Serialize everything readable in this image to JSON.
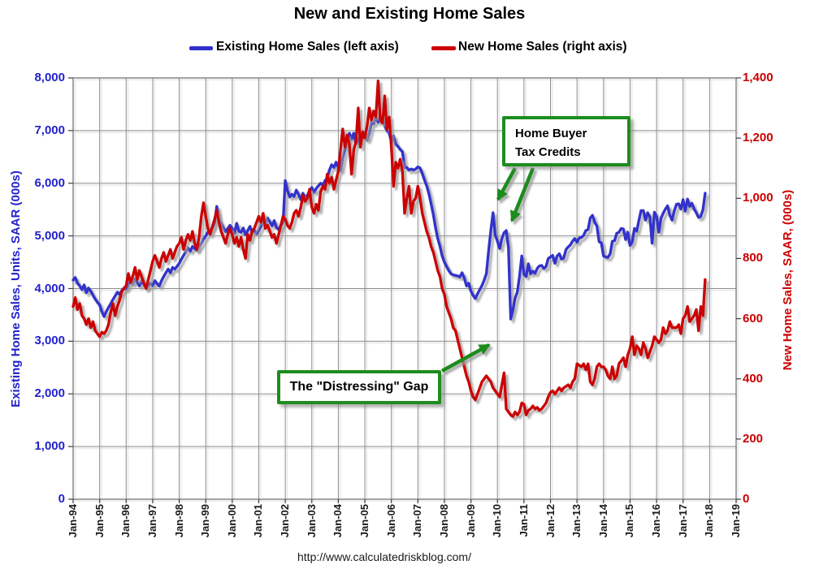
{
  "header": {
    "title": "New and Existing Home Sales"
  },
  "legend": {
    "items": [
      {
        "label": "Existing Home Sales (left axis)",
        "color": "#3030CC"
      },
      {
        "label": "New Home Sales (right axis)",
        "color": "#CC0202"
      }
    ]
  },
  "axes": {
    "left": {
      "title": "Existing Home Sales, Units, SAAR (000s)",
      "color": "#2222CC",
      "tick_labels": [
        "8,000",
        "7,000",
        "6,000",
        "5,000",
        "4,000",
        "3,000",
        "2,000",
        "1,000",
        "0"
      ]
    },
    "right": {
      "title": "New Home Sales, SAAR, (000s)",
      "color": "#CC0000",
      "tick_labels": [
        "1,400",
        "1,200",
        "1,000",
        "800",
        "600",
        "400",
        "200",
        "0"
      ]
    },
    "x": {
      "tick_labels": [
        "Jan-94",
        "Jan-95",
        "Jan-96",
        "Jan-97",
        "Jan-98",
        "Jan-99",
        "Jan-00",
        "Jan-01",
        "Jan-02",
        "Jan-03",
        "Jan-04",
        "Jan-05",
        "Jan-06",
        "Jan-07",
        "Jan-08",
        "Jan-09",
        "Jan-10",
        "Jan-11",
        "Jan-12",
        "Jan-13",
        "Jan-14",
        "Jan-15",
        "Jan-16",
        "Jan-17",
        "Jan-18",
        "Jan-19"
      ]
    }
  },
  "annotations": {
    "color": "#1E8C1E",
    "tax_credits": {
      "line1": "Home Buyer",
      "line2": "Tax Credits"
    },
    "gap": {
      "text": "The \"Distressing\" Gap"
    }
  },
  "footer": {
    "url": "http://www.calculatedriskblog.com/"
  },
  "chart_data": {
    "type": "line",
    "title": "New and Existing Home Sales",
    "x_start": "1994-01",
    "x_frequency": "monthly",
    "x_end": "2017-11",
    "x_axis_range": [
      "Jan-94",
      "Jan-19"
    ],
    "left_ylabel": "Existing Home Sales, Units, SAAR (000s)",
    "right_ylabel": "New Home Sales, SAAR, (000s)",
    "left_ylim": [
      0,
      8000
    ],
    "right_ylim": [
      0,
      1400
    ],
    "grid": true,
    "legend_position": "top",
    "series": [
      {
        "name": "Existing Home Sales (left axis)",
        "axis": "left",
        "color": "#3030CC",
        "values": [
          4160,
          4210,
          4100,
          4050,
          3980,
          4070,
          3920,
          4010,
          3950,
          3870,
          3800,
          3740,
          3690,
          3560,
          3470,
          3560,
          3640,
          3710,
          3790,
          3860,
          3930,
          3890,
          3960,
          4010,
          3990,
          4070,
          4150,
          4090,
          4180,
          4120,
          4050,
          4140,
          4080,
          4010,
          4050,
          4100,
          4060,
          4150,
          4090,
          4050,
          4150,
          4230,
          4300,
          4370,
          4300,
          4400,
          4370,
          4420,
          4480,
          4560,
          4630,
          4700,
          4770,
          4710,
          4800,
          4760,
          4730,
          4800,
          4860,
          4940,
          5000,
          5070,
          5120,
          5150,
          5250,
          5560,
          5300,
          5240,
          5150,
          5080,
          5140,
          5200,
          5140,
          5050,
          5240,
          5090,
          5070,
          5150,
          5020,
          5100,
          5180,
          5070,
          5110,
          5040,
          5100,
          5180,
          5290,
          5230,
          5340,
          5270,
          5190,
          5290,
          5160,
          5120,
          5200,
          5260,
          6050,
          5860,
          5740,
          5790,
          5750,
          5870,
          5790,
          5690,
          5810,
          5720,
          5770,
          5850,
          5920,
          5830,
          5900,
          5950,
          6000,
          5970,
          6050,
          6100,
          6250,
          6350,
          6300,
          6400,
          6300,
          6240,
          6480,
          6640,
          6780,
          6950,
          6840,
          6950,
          6750,
          6800,
          6940,
          6980,
          6900,
          6820,
          6950,
          7150,
          7130,
          7250,
          7160,
          7280,
          7250,
          7090,
          7000,
          6950,
          6790,
          6900,
          6740,
          6700,
          6640,
          6600,
          6300,
          6300,
          6250,
          6270,
          6250,
          6270,
          6310,
          6290,
          6180,
          6060,
          5950,
          5800,
          5610,
          5400,
          5150,
          4950,
          4800,
          4620,
          4500,
          4420,
          4340,
          4280,
          4260,
          4250,
          4240,
          4220,
          4300,
          4200,
          4050,
          4100,
          3950,
          3870,
          3810,
          3900,
          3980,
          4060,
          4160,
          4280,
          4720,
          5100,
          5440,
          5020,
          4900,
          4760,
          4950,
          5060,
          5100,
          4780,
          3420,
          3600,
          3820,
          3930,
          4230,
          4620,
          4270,
          4230,
          4470,
          4280,
          4330,
          4290,
          4380,
          4430,
          4440,
          4380,
          4420,
          4570,
          4600,
          4630,
          4480,
          4620,
          4660,
          4560,
          4580,
          4740,
          4790,
          4830,
          4900,
          4950,
          4880,
          4960,
          4970,
          5010,
          5100,
          5120,
          5340,
          5390,
          5260,
          5190,
          4890,
          4870,
          4620,
          4600,
          4590,
          4660,
          4900,
          4910,
          5050,
          5070,
          5140,
          5130,
          4930,
          5070,
          4820,
          4890,
          5140,
          5090,
          5290,
          5480,
          5480,
          5300,
          5440,
          5360,
          4860,
          5450,
          5370,
          5070,
          5330,
          5430,
          5510,
          5570,
          5390,
          5300,
          5470,
          5600,
          5610,
          5510,
          5690,
          5470,
          5700,
          5560,
          5620,
          5510,
          5440,
          5350,
          5370,
          5500,
          5810
        ]
      },
      {
        "name": "New Home Sales (right axis)",
        "axis": "right",
        "color": "#CC0202",
        "values": [
          640,
          670,
          630,
          650,
          610,
          600,
          580,
          600,
          570,
          590,
          560,
          550,
          540,
          555,
          550,
          560,
          580,
          620,
          650,
          610,
          640,
          660,
          690,
          700,
          710,
          750,
          720,
          740,
          770,
          730,
          760,
          740,
          720,
          700,
          730,
          760,
          790,
          810,
          790,
          770,
          800,
          820,
          790,
          810,
          830,
          800,
          820,
          840,
          850,
          870,
          830,
          860,
          880,
          860,
          890,
          850,
          830,
          870,
          940,
          985,
          940,
          900,
          880,
          905,
          930,
          960,
          920,
          890,
          870,
          850,
          880,
          900,
          880,
          850,
          870,
          840,
          870,
          830,
          800,
          880,
          860,
          890,
          900,
          920,
          940,
          920,
          950,
          900,
          910,
          890,
          870,
          880,
          850,
          880,
          910,
          940,
          930,
          910,
          900,
          920,
          950,
          960,
          940,
          970,
          1010,
          990,
          1000,
          1030,
          970,
          950,
          980,
          960,
          1020,
          1040,
          1030,
          1080,
          1050,
          1070,
          1030,
          1060,
          1090,
          1160,
          1230,
          1170,
          1210,
          1180,
          1080,
          1160,
          1190,
          1300,
          1170,
          1220,
          1200,
          1240,
          1300,
          1260,
          1290,
          1270,
          1390,
          1260,
          1250,
          1340,
          1230,
          1270,
          1170,
          1040,
          1120,
          1100,
          1130,
          1090,
          950,
          1000,
          1040,
          950,
          990,
          1000,
          1040,
          1000,
          950,
          920,
          890,
          870,
          840,
          820,
          790,
          760,
          740,
          700,
          680,
          640,
          620,
          600,
          570,
          560,
          530,
          500,
          470,
          440,
          410,
          390,
          360,
          340,
          330,
          350,
          370,
          390,
          400,
          410,
          400,
          390,
          370,
          360,
          350,
          340,
          380,
          420,
          300,
          290,
          280,
          275,
          290,
          280,
          290,
          320,
          315,
          280,
          295,
          300,
          310,
          300,
          305,
          295,
          300,
          310,
          320,
          340,
          355,
          360,
          350,
          360,
          370,
          360,
          370,
          375,
          380,
          370,
          390,
          400,
          450,
          445,
          440,
          450,
          430,
          450,
          390,
          380,
          400,
          440,
          450,
          440,
          440,
          430,
          410,
          400,
          440,
          400,
          410,
          450,
          460,
          470,
          440,
          480,
          500,
          540,
          480,
          510,
          500,
          480,
          520,
          500,
          470,
          490,
          510,
          540,
          530,
          520,
          530,
          570,
          550,
          560,
          590,
          570,
          570,
          570,
          580,
          550,
          600,
          610,
          640,
          590,
          600,
          610,
          630,
          560,
          640,
          610,
          730
        ]
      }
    ]
  }
}
